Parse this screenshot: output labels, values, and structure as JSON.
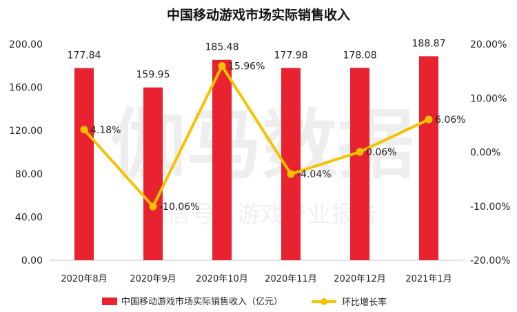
{
  "watermark": {
    "main": "伽马数据",
    "sub": "微信号：游戏产业报告"
  },
  "chart_data": {
    "type": "bar",
    "title": "中国移动游戏市场实际销售收入",
    "categories": [
      "2020年8月",
      "2020年9月",
      "2020年10月",
      "2020年11月",
      "2020年12月",
      "2021年1月"
    ],
    "series": [
      {
        "name": "中国移动游戏市场实际销售收入（亿元）",
        "type": "bar",
        "axis": "left",
        "values": [
          177.84,
          159.95,
          185.48,
          177.98,
          178.08,
          188.87
        ],
        "labels": [
          "177.84",
          "159.95",
          "185.48",
          "177.98",
          "178.08",
          "188.87"
        ],
        "color": "#e8232f"
      },
      {
        "name": "环比增长率",
        "type": "line",
        "axis": "right",
        "values": [
          4.18,
          -10.06,
          15.96,
          -4.04,
          0.06,
          6.06
        ],
        "labels": [
          "4.18%",
          "-10.06%",
          "15.96%",
          "-4.04%",
          "0.06%",
          "6.06%"
        ],
        "color": "#f5c200"
      }
    ],
    "y_left": {
      "ylim": [
        0,
        200
      ],
      "ticks": [
        0,
        40,
        80,
        120,
        160,
        200
      ],
      "tick_labels": [
        "0.00",
        "40.00",
        "80.00",
        "120.00",
        "160.00",
        "200.00"
      ]
    },
    "y_right": {
      "ylim": [
        -20,
        20
      ],
      "ticks": [
        -20,
        -10,
        0,
        10,
        20
      ],
      "tick_labels": [
        "-20.00%",
        "-10.00%",
        "0.00%",
        "10.00%",
        "20.00%"
      ]
    },
    "grid": false,
    "legend_position": "bottom"
  }
}
